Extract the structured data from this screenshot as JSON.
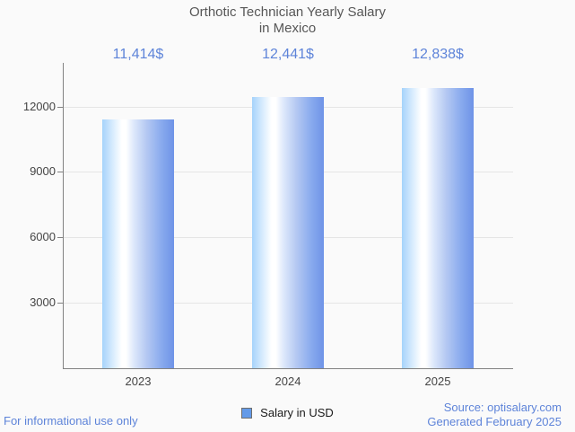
{
  "title": "Orthotic Technician Yearly Salary\nin Mexico",
  "legend": {
    "label": "Salary in USD"
  },
  "footer": {
    "left": "For informational use only",
    "source": "Source: optisalary.com",
    "generated": "Generated February 2025"
  },
  "colors": {
    "background": "#fafafa",
    "title_text": "#575757",
    "axis_text": "#444444",
    "axis_line": "#828282",
    "gridline": "#e5e5e5",
    "accent_blue": "#5e84d9",
    "bar_left": "#a5d3fb",
    "bar_highlight": "#ffffff",
    "bar_right": "#6e93e7",
    "legend_swatch": "#639ae8"
  },
  "chart_data": {
    "type": "bar",
    "title": "Orthotic Technician Yearly Salary in Mexico",
    "categories": [
      "2023",
      "2024",
      "2025"
    ],
    "series": [
      {
        "name": "Salary in USD",
        "values": [
          11414,
          12441,
          12838
        ]
      }
    ],
    "value_labels": [
      "11,414$",
      "12,441$",
      "12,838$"
    ],
    "xlabel": "",
    "ylabel": "",
    "ylim": [
      0,
      14000
    ],
    "yticks": [
      3000,
      6000,
      9000,
      12000
    ],
    "grid": true,
    "legend_position": "bottom"
  }
}
